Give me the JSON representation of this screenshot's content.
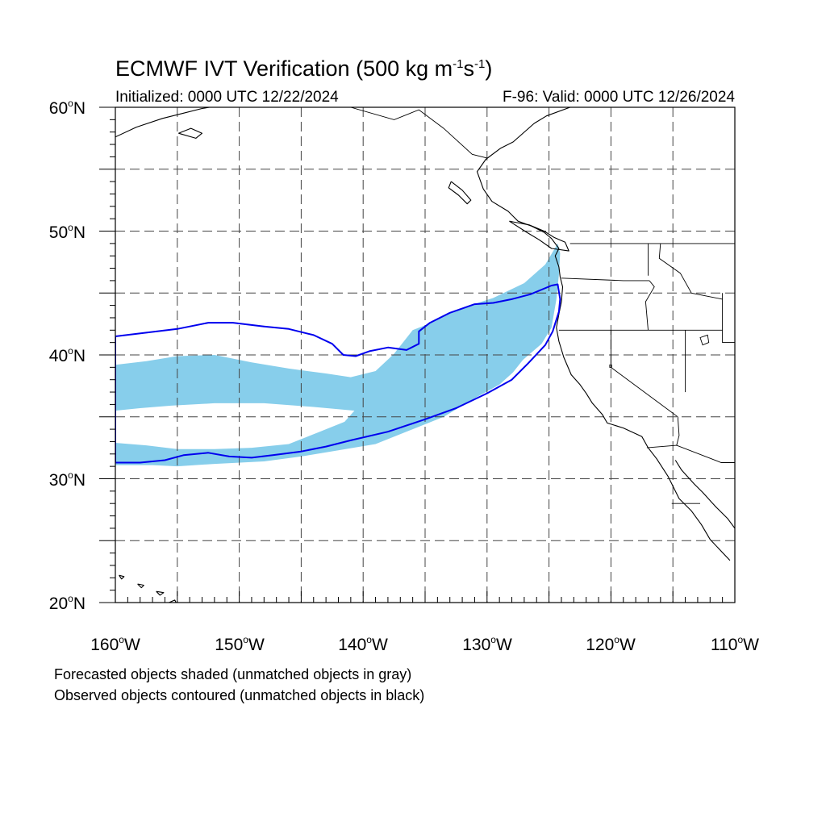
{
  "header": {
    "title_main": "ECMWF IVT Verification (500 kg m",
    "title_sup1": "-1",
    "title_mid": "s",
    "title_sup2": "-1",
    "title_end": ")",
    "initialized": "Initialized: 0000 UTC 12/22/2024",
    "valid": "F-96: Valid: 0000 UTC 12/26/2024"
  },
  "map": {
    "projection": "cylindrical equidistant",
    "lon_range": [
      -160,
      -110
    ],
    "lat_range": [
      20,
      60
    ],
    "grid": true,
    "grid_spacing_deg": 5,
    "lat_labels": [
      {
        "value": 60,
        "text": "60",
        "suffix": "N"
      },
      {
        "value": 50,
        "text": "50",
        "suffix": "N"
      },
      {
        "value": 40,
        "text": "40",
        "suffix": "N"
      },
      {
        "value": 30,
        "text": "30",
        "suffix": "N"
      },
      {
        "value": 20,
        "text": "20",
        "suffix": "N"
      }
    ],
    "lon_labels": [
      {
        "value": -160,
        "text": "160",
        "suffix": "W"
      },
      {
        "value": -150,
        "text": "150",
        "suffix": "W"
      },
      {
        "value": -140,
        "text": "140",
        "suffix": "W"
      },
      {
        "value": -130,
        "text": "130",
        "suffix": "W"
      },
      {
        "value": -120,
        "text": "120",
        "suffix": "W"
      },
      {
        "value": -110,
        "text": "110",
        "suffix": "W"
      }
    ],
    "degree_symbol": "o",
    "colors": {
      "forecast_fill": "#87ceeb",
      "observed_contour": "#0000ee",
      "coast": "#000000",
      "grid": "#444444"
    },
    "forecast_object": {
      "name": "forecast-ivt-object",
      "polygon": [
        [
          -160,
          39.2
        ],
        [
          -157.5,
          39.5
        ],
        [
          -155,
          39.9
        ],
        [
          -152,
          40.0
        ],
        [
          -149,
          39.4
        ],
        [
          -146,
          38.9
        ],
        [
          -143,
          38.5
        ],
        [
          -141,
          38.2
        ],
        [
          -139,
          38.7
        ],
        [
          -137.5,
          40.1
        ],
        [
          -136,
          42
        ],
        [
          -135,
          42.4
        ],
        [
          -132,
          43.8
        ],
        [
          -129.5,
          44.6
        ],
        [
          -127,
          45.8
        ],
        [
          -125.3,
          47.3
        ],
        [
          -124.3,
          49.0
        ],
        [
          -124.1,
          48.2
        ],
        [
          -124.2,
          46.5
        ],
        [
          -124.4,
          44.5
        ],
        [
          -124.8,
          42.2
        ],
        [
          -125.6,
          40.9
        ],
        [
          -127.1,
          39.6
        ],
        [
          -127.9,
          38.6
        ],
        [
          -129,
          37.6
        ],
        [
          -131,
          36.5
        ],
        [
          -133.5,
          35
        ],
        [
          -136,
          34
        ],
        [
          -139,
          32.8
        ],
        [
          -142,
          32.3
        ],
        [
          -145,
          31.8
        ],
        [
          -148,
          31.4
        ],
        [
          -152,
          31.2
        ],
        [
          -155,
          31.0
        ],
        [
          -157,
          31.1
        ],
        [
          -160,
          31.1
        ],
        [
          -160,
          32.9
        ],
        [
          -157.5,
          32.7
        ],
        [
          -155,
          32.4
        ],
        [
          -152,
          32.4
        ],
        [
          -149,
          32.5
        ],
        [
          -146,
          32.8
        ],
        [
          -143.5,
          33.8
        ],
        [
          -141.5,
          34.6
        ],
        [
          -140.7,
          35.5
        ],
        [
          -144,
          35.8
        ],
        [
          -148,
          36.1
        ],
        [
          -152,
          36.1
        ],
        [
          -155.5,
          35.9
        ],
        [
          -158,
          35.7
        ],
        [
          -160,
          35.5
        ]
      ]
    },
    "observed_object": {
      "name": "observed-ivt-contour",
      "polygon": [
        [
          -160,
          41.5
        ],
        [
          -157.5,
          41.8
        ],
        [
          -155,
          42.1
        ],
        [
          -152.5,
          42.6
        ],
        [
          -150.5,
          42.6
        ],
        [
          -148,
          42.3
        ],
        [
          -146,
          42.1
        ],
        [
          -144,
          41.6
        ],
        [
          -142.5,
          40.9
        ],
        [
          -141.6,
          40.0
        ],
        [
          -140.6,
          39.9
        ],
        [
          -139.5,
          40.3
        ],
        [
          -138,
          40.6
        ],
        [
          -136.5,
          40.4
        ],
        [
          -135.5,
          40.9
        ],
        [
          -135.5,
          41.9
        ],
        [
          -134.6,
          42.6
        ],
        [
          -133,
          43.4
        ],
        [
          -131,
          44.1
        ],
        [
          -129.5,
          44.2
        ],
        [
          -128,
          44.5
        ],
        [
          -126.5,
          44.9
        ],
        [
          -124.8,
          45.6
        ],
        [
          -124.3,
          45.7
        ],
        [
          -124.1,
          44.5
        ],
        [
          -124.2,
          43.5
        ],
        [
          -124.7,
          41.9
        ],
        [
          -125.3,
          40.8
        ],
        [
          -126.7,
          39.3
        ],
        [
          -128,
          38.0
        ],
        [
          -130,
          36.9
        ],
        [
          -132.5,
          35.7
        ],
        [
          -135,
          34.8
        ],
        [
          -138,
          33.8
        ],
        [
          -141,
          33.1
        ],
        [
          -143,
          32.6
        ],
        [
          -145,
          32.2
        ],
        [
          -147.3,
          31.9
        ],
        [
          -149,
          31.7
        ],
        [
          -150.8,
          31.8
        ],
        [
          -152.5,
          32.1
        ],
        [
          -154.5,
          31.9
        ],
        [
          -156,
          31.5
        ],
        [
          -158,
          31.3
        ],
        [
          -160,
          31.3
        ]
      ]
    },
    "coastlines": [
      {
        "name": "north-america-coast",
        "points": [
          [
            -123.3,
            60
          ],
          [
            -125.2,
            59.3
          ],
          [
            -126.2,
            58.7
          ],
          [
            -127.9,
            57.2
          ],
          [
            -128.9,
            56.7
          ],
          [
            -130.1,
            55.8
          ],
          [
            -130.8,
            54.8
          ],
          [
            -130.3,
            53.4
          ],
          [
            -129.6,
            52.4
          ],
          [
            -128.3,
            51.6
          ],
          [
            -127.5,
            50.8
          ],
          [
            -126.4,
            50.4
          ],
          [
            -125.4,
            49.9
          ],
          [
            -124.8,
            49.4
          ],
          [
            -124.2,
            48.6
          ],
          [
            -124.5,
            48.0
          ],
          [
            -124.2,
            47.1
          ],
          [
            -124.1,
            46.3
          ],
          [
            -123.9,
            45.5
          ],
          [
            -124.0,
            44.3
          ],
          [
            -124.2,
            43.3
          ],
          [
            -124.4,
            42.2
          ],
          [
            -124.2,
            41.1
          ],
          [
            -123.8,
            39.8
          ],
          [
            -123.2,
            38.4
          ],
          [
            -122.5,
            37.6
          ],
          [
            -122.0,
            36.9
          ],
          [
            -121.5,
            36.1
          ],
          [
            -120.7,
            35.2
          ],
          [
            -120.3,
            34.5
          ],
          [
            -119.0,
            34.1
          ],
          [
            -117.5,
            33.4
          ],
          [
            -117.0,
            32.5
          ],
          [
            -116.3,
            31.6
          ],
          [
            -115.4,
            30.2
          ],
          [
            -114.5,
            28.4
          ],
          [
            -113.5,
            27.4
          ],
          [
            -112.7,
            26.3
          ],
          [
            -112.0,
            25.1
          ],
          [
            -110.4,
            23.4
          ]
        ]
      },
      {
        "name": "gulf-of-california-coast",
        "points": [
          [
            -114.8,
            31.5
          ],
          [
            -114.3,
            30.7
          ],
          [
            -113.3,
            29.6
          ],
          [
            -112.6,
            28.9
          ],
          [
            -111.6,
            27.8
          ],
          [
            -110.6,
            26.8
          ],
          [
            -110,
            26.0
          ]
        ]
      },
      {
        "name": "vancouver-island-coast",
        "points": [
          [
            -128.2,
            50.8
          ],
          [
            -126.8,
            49.9
          ],
          [
            -125.8,
            49.3
          ],
          [
            -124.8,
            48.6
          ],
          [
            -123.4,
            48.4
          ],
          [
            -123.7,
            49.1
          ],
          [
            -124.6,
            49.5
          ],
          [
            -125.4,
            50.0
          ],
          [
            -126.6,
            50.5
          ],
          [
            -128.2,
            50.8
          ]
        ]
      },
      {
        "name": "haida-gwaii-coast",
        "points": [
          [
            -132.9,
            54.0
          ],
          [
            -132.0,
            53.3
          ],
          [
            -131.3,
            52.5
          ],
          [
            -131.6,
            52.2
          ],
          [
            -132.3,
            52.9
          ],
          [
            -133.1,
            53.5
          ],
          [
            -132.9,
            54.0
          ]
        ]
      },
      {
        "name": "alaska-coast",
        "points": [
          [
            -160,
            57.6
          ],
          [
            -158.3,
            58.4
          ],
          [
            -156.2,
            59.1
          ],
          [
            -154.6,
            59.5
          ],
          [
            -153.0,
            59.9
          ],
          [
            -152.4,
            60
          ]
        ]
      },
      {
        "name": "kodiak-coast",
        "points": [
          [
            -154.9,
            57.9
          ],
          [
            -153.5,
            57.5
          ],
          [
            -153.0,
            57.9
          ],
          [
            -153.9,
            58.3
          ],
          [
            -154.9,
            57.9
          ]
        ]
      },
      {
        "name": "hawaii-big-island",
        "points": [
          [
            -155.9,
            19.9
          ],
          [
            -155.2,
            20.2
          ],
          [
            -154.9,
            19.6
          ],
          [
            -155.5,
            19.0
          ],
          [
            -155.9,
            19.6
          ],
          [
            -155.9,
            19.9
          ]
        ]
      },
      {
        "name": "hawaii-maui",
        "points": [
          [
            -156.7,
            20.9
          ],
          [
            -156.1,
            20.8
          ],
          [
            -156.4,
            20.6
          ],
          [
            -156.7,
            20.9
          ]
        ]
      },
      {
        "name": "hawaii-oahu",
        "points": [
          [
            -158.2,
            21.5
          ],
          [
            -157.7,
            21.4
          ],
          [
            -157.9,
            21.2
          ],
          [
            -158.2,
            21.5
          ]
        ]
      },
      {
        "name": "hawaii-kauai",
        "points": [
          [
            -159.7,
            22.2
          ],
          [
            -159.3,
            22.1
          ],
          [
            -159.5,
            21.9
          ],
          [
            -159.7,
            22.2
          ]
        ]
      }
    ],
    "boundaries": [
      {
        "name": "us-canada-border",
        "points": [
          [
            -123.3,
            49.0
          ],
          [
            -110,
            49.0
          ]
        ]
      },
      {
        "name": "alaska-canada-border",
        "points": [
          [
            -141,
            60
          ],
          [
            -137.5,
            59.0
          ],
          [
            -135.5,
            59.8
          ],
          [
            -133.5,
            58.3
          ],
          [
            -131.2,
            56.2
          ],
          [
            -130.0,
            55.9
          ]
        ]
      },
      {
        "name": "wa-or-border",
        "points": [
          [
            -124.0,
            46.2
          ],
          [
            -119.0,
            46.0
          ],
          [
            -116.9,
            46.0
          ]
        ]
      },
      {
        "name": "wa-id-border",
        "points": [
          [
            -117.0,
            49.0
          ],
          [
            -117.0,
            46.4
          ]
        ]
      },
      {
        "name": "or-id-border",
        "points": [
          [
            -116.9,
            46.0
          ],
          [
            -116.5,
            45.5
          ],
          [
            -117.2,
            44.3
          ],
          [
            -117.0,
            42.0
          ]
        ]
      },
      {
        "name": "or-ca-nv-border",
        "points": [
          [
            -124.2,
            42.0
          ],
          [
            -111.0,
            42.0
          ]
        ]
      },
      {
        "name": "ca-nv-border",
        "points": [
          [
            -120,
            42
          ],
          [
            -120,
            39
          ],
          [
            -114.6,
            35.0
          ]
        ]
      },
      {
        "name": "nv-ut-border",
        "points": [
          [
            -114.0,
            42.0
          ],
          [
            -114.0,
            37.0
          ]
        ]
      },
      {
        "name": "id-mt-border",
        "points": [
          [
            -116.0,
            49.0
          ],
          [
            -116.1,
            47.8
          ],
          [
            -114.4,
            46.6
          ],
          [
            -113.5,
            45.0
          ],
          [
            -111.0,
            44.5
          ]
        ]
      },
      {
        "name": "wy-id-border",
        "points": [
          [
            -111.0,
            45.0
          ],
          [
            -111.0,
            41.0
          ],
          [
            -110,
            41.0
          ]
        ]
      },
      {
        "name": "ca-az-border",
        "points": [
          [
            -114.6,
            35.0
          ],
          [
            -114.5,
            33.5
          ],
          [
            -114.7,
            32.7
          ]
        ]
      },
      {
        "name": "us-mexico-border",
        "points": [
          [
            -117.1,
            32.5
          ],
          [
            -114.7,
            32.7
          ],
          [
            -111.1,
            31.3
          ],
          [
            -110,
            31.3
          ]
        ]
      },
      {
        "name": "baja-state-border",
        "points": [
          [
            -115.1,
            28.0
          ],
          [
            -112.8,
            28.0
          ]
        ]
      }
    ],
    "lakes": [
      {
        "name": "great-salt-lake",
        "points": [
          [
            -112.8,
            41.4
          ],
          [
            -112.2,
            41.6
          ],
          [
            -112.1,
            41.0
          ],
          [
            -112.6,
            40.8
          ],
          [
            -112.8,
            41.4
          ]
        ]
      },
      {
        "name": "lake-tahoe",
        "points": [
          [
            -120.1,
            39.2
          ],
          [
            -119.95,
            39.2
          ],
          [
            -119.95,
            39.0
          ],
          [
            -120.1,
            39.0
          ],
          [
            -120.1,
            39.2
          ]
        ]
      }
    ]
  },
  "footer": {
    "line1": "Forecasted objects shaded (unmatched objects in gray)",
    "line2": "Observed objects contoured (unmatched objects in black)"
  }
}
